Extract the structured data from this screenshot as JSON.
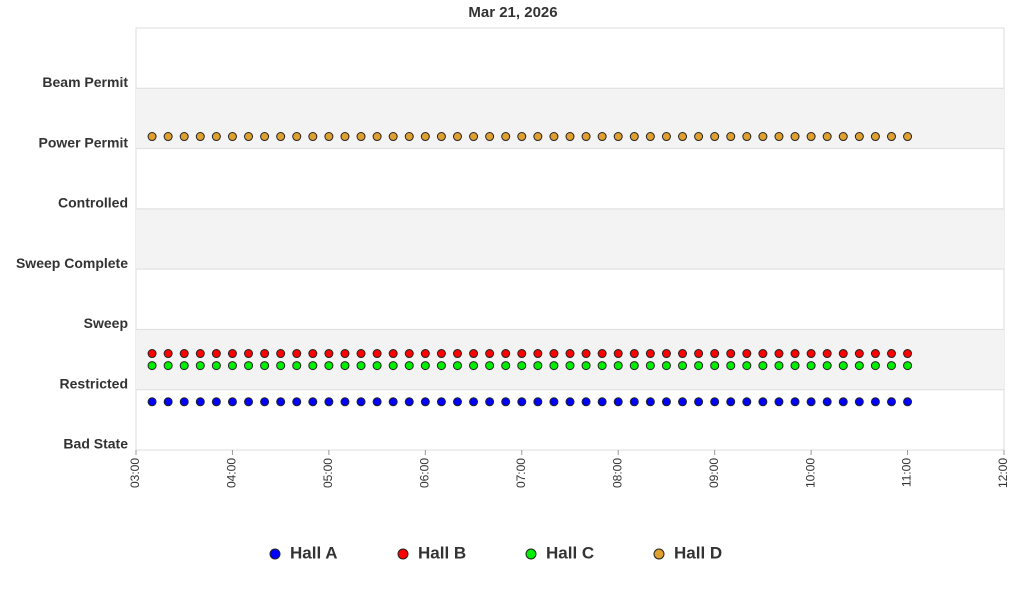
{
  "chart_data": {
    "type": "scatter",
    "title": "Mar 21, 2026",
    "x": [
      "03:10",
      "03:20",
      "03:30",
      "03:40",
      "03:50",
      "04:00",
      "04:10",
      "04:20",
      "04:30",
      "04:40",
      "04:50",
      "05:00",
      "05:10",
      "05:20",
      "05:30",
      "05:40",
      "05:50",
      "06:00",
      "06:10",
      "06:20",
      "06:30",
      "06:40",
      "06:50",
      "07:00",
      "07:10",
      "07:20",
      "07:30",
      "07:40",
      "07:50",
      "08:00",
      "08:10",
      "08:20",
      "08:30",
      "08:40",
      "08:50",
      "09:00",
      "09:10",
      "09:20",
      "09:30",
      "09:40",
      "09:50",
      "10:00",
      "10:10",
      "10:20",
      "10:30",
      "10:40",
      "10:50",
      "11:00"
    ],
    "xlim": [
      "03:00",
      "12:00"
    ],
    "xticks": [
      "03:00",
      "04:00",
      "05:00",
      "06:00",
      "07:00",
      "08:00",
      "09:00",
      "10:00",
      "11:00",
      "12:00"
    ],
    "ylim": [
      0,
      7
    ],
    "yticks": [
      {
        "value": 0,
        "label": "Bad State"
      },
      {
        "value": 1,
        "label": "Restricted"
      },
      {
        "value": 2,
        "label": "Sweep"
      },
      {
        "value": 3,
        "label": "Sweep Complete"
      },
      {
        "value": 4,
        "label": "Controlled"
      },
      {
        "value": 5,
        "label": "Power Permit"
      },
      {
        "value": 6,
        "label": "Beam Permit"
      }
    ],
    "grid": true,
    "legend": "bottom",
    "series": [
      {
        "name": "Hall A",
        "color": "#0000ff",
        "values": [
          0.8,
          0.8,
          0.8,
          0.8,
          0.8,
          0.8,
          0.8,
          0.8,
          0.8,
          0.8,
          0.8,
          0.8,
          0.8,
          0.8,
          0.8,
          0.8,
          0.8,
          0.8,
          0.8,
          0.8,
          0.8,
          0.8,
          0.8,
          0.8,
          0.8,
          0.8,
          0.8,
          0.8,
          0.8,
          0.8,
          0.8,
          0.8,
          0.8,
          0.8,
          0.8,
          0.8,
          0.8,
          0.8,
          0.8,
          0.8,
          0.8,
          0.8,
          0.8,
          0.8,
          0.8,
          0.8,
          0.8,
          0.8
        ]
      },
      {
        "name": "Hall B",
        "color": "#ff0000",
        "values": [
          1.6,
          1.6,
          1.6,
          1.6,
          1.6,
          1.6,
          1.6,
          1.6,
          1.6,
          1.6,
          1.6,
          1.6,
          1.6,
          1.6,
          1.6,
          1.6,
          1.6,
          1.6,
          1.6,
          1.6,
          1.6,
          1.6,
          1.6,
          1.6,
          1.6,
          1.6,
          1.6,
          1.6,
          1.6,
          1.6,
          1.6,
          1.6,
          1.6,
          1.6,
          1.6,
          1.6,
          1.6,
          1.6,
          1.6,
          1.6,
          1.6,
          1.6,
          1.6,
          1.6,
          1.6,
          1.6,
          1.6,
          1.6
        ]
      },
      {
        "name": "Hall C",
        "color": "#00ee00",
        "values": [
          1.4,
          1.4,
          1.4,
          1.4,
          1.4,
          1.4,
          1.4,
          1.4,
          1.4,
          1.4,
          1.4,
          1.4,
          1.4,
          1.4,
          1.4,
          1.4,
          1.4,
          1.4,
          1.4,
          1.4,
          1.4,
          1.4,
          1.4,
          1.4,
          1.4,
          1.4,
          1.4,
          1.4,
          1.4,
          1.4,
          1.4,
          1.4,
          1.4,
          1.4,
          1.4,
          1.4,
          1.4,
          1.4,
          1.4,
          1.4,
          1.4,
          1.4,
          1.4,
          1.4,
          1.4,
          1.4,
          1.4,
          1.4
        ]
      },
      {
        "name": "Hall D",
        "color": "#e0a030",
        "values": [
          5.2,
          5.2,
          5.2,
          5.2,
          5.2,
          5.2,
          5.2,
          5.2,
          5.2,
          5.2,
          5.2,
          5.2,
          5.2,
          5.2,
          5.2,
          5.2,
          5.2,
          5.2,
          5.2,
          5.2,
          5.2,
          5.2,
          5.2,
          5.2,
          5.2,
          5.2,
          5.2,
          5.2,
          5.2,
          5.2,
          5.2,
          5.2,
          5.2,
          5.2,
          5.2,
          5.2,
          5.2,
          5.2,
          5.2,
          5.2,
          5.2,
          5.2,
          5.2,
          5.2,
          5.2,
          5.2,
          5.2,
          5.2
        ]
      }
    ]
  }
}
